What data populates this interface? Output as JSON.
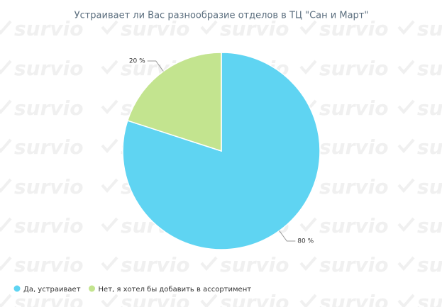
{
  "watermark": "survio",
  "chart_data": {
    "type": "pie",
    "title": "Устраивает ли Вас разнообразие отделов в ТЦ \"Сан и Март\"",
    "categories": [
      "Да, устраивает",
      "Нет, я хотел бы добавить в ассортимент"
    ],
    "values": [
      80,
      20
    ],
    "value_labels": [
      "80 %",
      "20 %"
    ],
    "colors": [
      "#5fd4f2",
      "#c3e48f"
    ],
    "legend": "bottom-left"
  }
}
